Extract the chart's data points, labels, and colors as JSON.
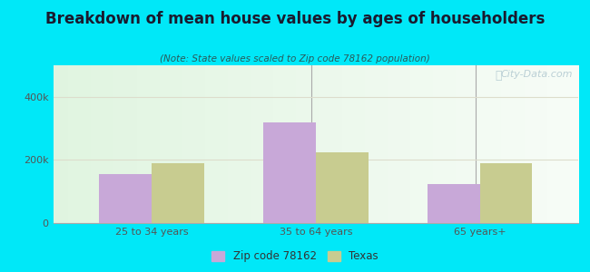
{
  "title": "Breakdown of mean house values by ages of householders",
  "subtitle": "(Note: State values scaled to Zip code 78162 population)",
  "categories": [
    "25 to 34 years",
    "35 to 64 years",
    "65 years+"
  ],
  "zip_values": [
    155000,
    320000,
    125000
  ],
  "state_values": [
    190000,
    225000,
    190000
  ],
  "zip_color": "#c8a8d8",
  "state_color": "#c8cc90",
  "background_outer": "#00e8f8",
  "ylim": [
    0,
    500000
  ],
  "yticks": [
    0,
    200000,
    400000
  ],
  "ytick_labels": [
    "0",
    "200k",
    "400k"
  ],
  "bar_width": 0.32,
  "legend_zip_label": "Zip code 78162",
  "legend_state_label": "Texas",
  "watermark": "City-Data.com",
  "title_color": "#1a1a2e",
  "subtitle_color": "#2a5a5a",
  "tick_color": "#555555",
  "divider_color": "#aaaaaa",
  "grid_color": "#ddddcc"
}
